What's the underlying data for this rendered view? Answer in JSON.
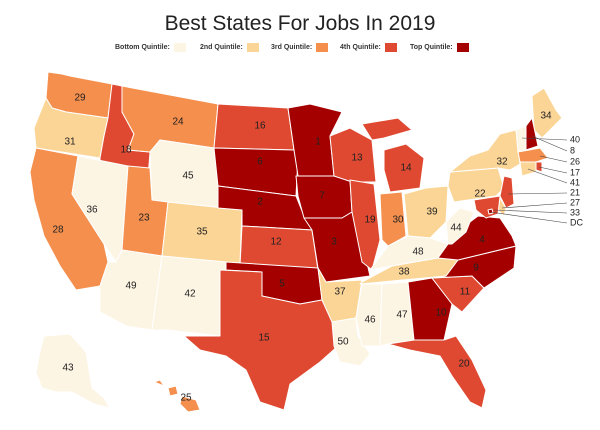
{
  "title": "Best States For Jobs In 2019",
  "legend": [
    {
      "label": "Bottom Quintile:",
      "color": "#fdf5e4"
    },
    {
      "label": "2nd Quintile:",
      "color": "#fbd596"
    },
    {
      "label": "3rd Quintile:",
      "color": "#f58f4d"
    },
    {
      "label": "4th Quintile:",
      "color": "#df4931"
    },
    {
      "label": "Top Quintile:",
      "color": "#a50000"
    }
  ],
  "colors": {
    "q1": "#fdf5e4",
    "q2": "#fbd596",
    "q3": "#f58f4d",
    "q4": "#df4931",
    "q5": "#a50000"
  },
  "states": [
    {
      "code": "WA",
      "rank": "29"
    },
    {
      "code": "OR",
      "rank": "31"
    },
    {
      "code": "CA",
      "rank": "28"
    },
    {
      "code": "ID",
      "rank": "18"
    },
    {
      "code": "NV",
      "rank": "36"
    },
    {
      "code": "MT",
      "rank": "24"
    },
    {
      "code": "WY",
      "rank": "45"
    },
    {
      "code": "UT",
      "rank": "23"
    },
    {
      "code": "AZ",
      "rank": "49"
    },
    {
      "code": "CO",
      "rank": "35"
    },
    {
      "code": "NM",
      "rank": "42"
    },
    {
      "code": "ND",
      "rank": "16"
    },
    {
      "code": "SD",
      "rank": "6"
    },
    {
      "code": "NE",
      "rank": "2"
    },
    {
      "code": "KS",
      "rank": "12"
    },
    {
      "code": "OK",
      "rank": "5"
    },
    {
      "code": "TX",
      "rank": "15"
    },
    {
      "code": "MN",
      "rank": "1"
    },
    {
      "code": "IA",
      "rank": "7"
    },
    {
      "code": "MO",
      "rank": "3"
    },
    {
      "code": "AR",
      "rank": "37"
    },
    {
      "code": "LA",
      "rank": "50"
    },
    {
      "code": "WI",
      "rank": "13"
    },
    {
      "code": "IL",
      "rank": "19"
    },
    {
      "code": "MI",
      "rank": "14"
    },
    {
      "code": "IN",
      "rank": "30"
    },
    {
      "code": "OH",
      "rank": "39"
    },
    {
      "code": "KY",
      "rank": "48"
    },
    {
      "code": "TN",
      "rank": "38"
    },
    {
      "code": "MS",
      "rank": "46"
    },
    {
      "code": "AL",
      "rank": "47"
    },
    {
      "code": "GA",
      "rank": "10"
    },
    {
      "code": "FL",
      "rank": "20"
    },
    {
      "code": "SC",
      "rank": "11"
    },
    {
      "code": "NC",
      "rank": "9"
    },
    {
      "code": "VA",
      "rank": "4"
    },
    {
      "code": "WV",
      "rank": "44"
    },
    {
      "code": "PA",
      "rank": "22"
    },
    {
      "code": "NY",
      "rank": "32"
    },
    {
      "code": "ME",
      "rank": "34"
    },
    {
      "code": "AK",
      "rank": "43"
    },
    {
      "code": "HI",
      "rank": "25"
    },
    {
      "code": "VT",
      "rank": "40"
    },
    {
      "code": "NH",
      "rank": "8"
    },
    {
      "code": "MA",
      "rank": "26"
    },
    {
      "code": "RI",
      "rank": "17"
    },
    {
      "code": "CT",
      "rank": "41"
    },
    {
      "code": "NJ",
      "rank": "21"
    },
    {
      "code": "DE",
      "rank": "27"
    },
    {
      "code": "MD",
      "rank": "33"
    },
    {
      "code": "DC",
      "rank": "DC"
    }
  ]
}
